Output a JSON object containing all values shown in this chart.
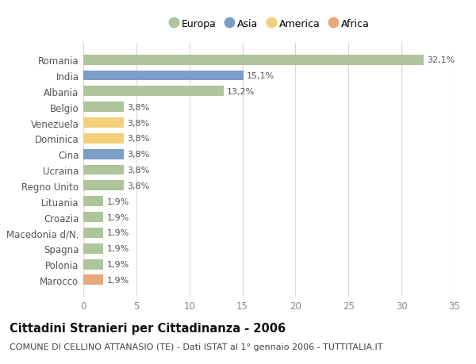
{
  "categories": [
    "Romania",
    "India",
    "Albania",
    "Belgio",
    "Venezuela",
    "Dominica",
    "Cina",
    "Ucraina",
    "Regno Unito",
    "Lituania",
    "Croazia",
    "Macedonia d/N.",
    "Spagna",
    "Polonia",
    "Marocco"
  ],
  "values": [
    32.1,
    15.1,
    13.2,
    3.8,
    3.8,
    3.8,
    3.8,
    3.8,
    3.8,
    1.9,
    1.9,
    1.9,
    1.9,
    1.9,
    1.9
  ],
  "labels": [
    "32,1%",
    "15,1%",
    "13,2%",
    "3,8%",
    "3,8%",
    "3,8%",
    "3,8%",
    "3,8%",
    "3,8%",
    "1,9%",
    "1,9%",
    "1,9%",
    "1,9%",
    "1,9%",
    "1,9%"
  ],
  "continents": [
    "Europa",
    "Asia",
    "Europa",
    "Europa",
    "America",
    "America",
    "Asia",
    "Europa",
    "Europa",
    "Europa",
    "Europa",
    "Europa",
    "Europa",
    "Europa",
    "Africa"
  ],
  "colors": {
    "Europa": "#aec49a",
    "Asia": "#7b9ec7",
    "America": "#f5d07a",
    "Africa": "#e8a87c"
  },
  "legend_order": [
    "Europa",
    "Asia",
    "America",
    "Africa"
  ],
  "xlim": [
    0,
    35
  ],
  "xticks": [
    0,
    5,
    10,
    15,
    20,
    25,
    30,
    35
  ],
  "title": "Cittadini Stranieri per Cittadinanza - 2006",
  "subtitle": "COMUNE DI CELLINO ATTANASIO (TE) - Dati ISTAT al 1° gennaio 2006 - TUTTITALIA.IT",
  "background_color": "#ffffff",
  "grid_color": "#d8d8d8",
  "bar_height": 0.65,
  "label_fontsize": 8.0,
  "title_fontsize": 10.5,
  "subtitle_fontsize": 8.0,
  "ytick_fontsize": 8.5,
  "xtick_fontsize": 8.5
}
